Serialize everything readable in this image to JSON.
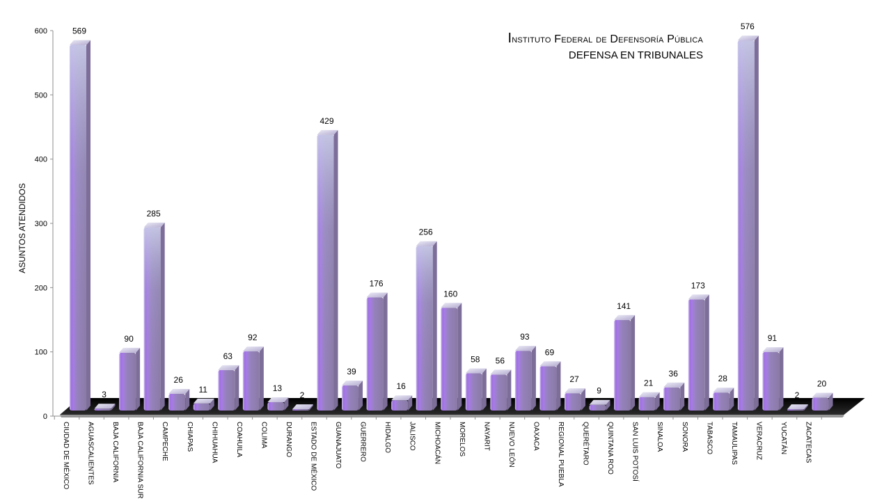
{
  "chart_data": {
    "type": "bar",
    "title": "Instituto Federal de Defensoría Pública",
    "subtitle": "DEFENSA EN TRIBUNALES",
    "xlabel": "",
    "ylabel": "ASUNTOS ATENDIDOS",
    "ylim": [
      0,
      600
    ],
    "yticks": [
      0,
      100,
      200,
      300,
      400,
      500,
      600
    ],
    "grid": false,
    "legend": "none",
    "categories": [
      "CIUDAD DE MÉXICO",
      "AGUASCALIENTES",
      "BAJA CALIFORNIA",
      "BAJA CALIFORNIA SUR",
      "CAMPECHE",
      "CHIAPAS",
      "CHIHUAHUA",
      "COAHUILA",
      "COLIMA",
      "DURANGO",
      "ESTADO DE MÉXICO",
      "GUANAJUATO",
      "GUERRERO",
      "HIDALGO",
      "JALISCO",
      "MICHOACÁN",
      "MORELOS",
      "NAYARIT",
      "NUEVO LEÓN",
      "OAXACA",
      "REGIONAL PUEBLA",
      "QUERÉTARO",
      "QUINTANA ROO",
      "SAN LUIS POTOSÍ",
      "SINALOA",
      "SONORA",
      "TABASCO",
      "TAMAULIPAS",
      "VERACRUZ",
      "YUCATÁN",
      "ZACATECAS"
    ],
    "values": [
      569,
      3,
      90,
      285,
      26,
      11,
      63,
      92,
      13,
      2,
      429,
      39,
      176,
      16,
      256,
      160,
      58,
      56,
      93,
      69,
      27,
      9,
      141,
      21,
      36,
      173,
      28,
      576,
      91,
      2,
      20
    ],
    "colors": {
      "bar": "#8f7fb0",
      "highlight": "#c6c8e6",
      "glow": "#a259e6",
      "floor": "#1a1a1a"
    }
  }
}
